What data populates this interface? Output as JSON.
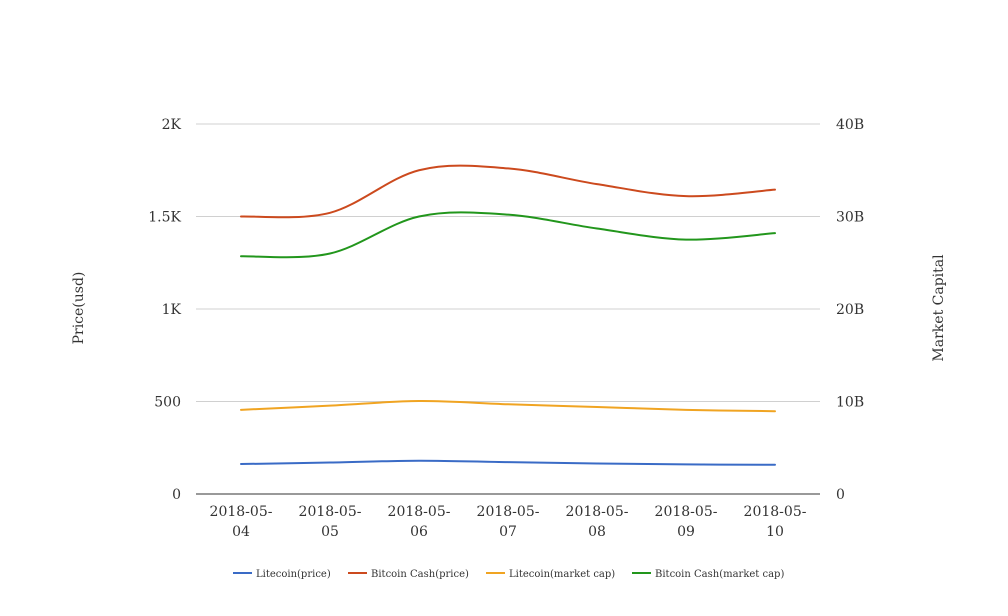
{
  "chart_data": {
    "type": "line",
    "categories": [
      "2018-05-04",
      "2018-05-05",
      "2018-05-06",
      "2018-05-07",
      "2018-05-08",
      "2018-05-09",
      "2018-05-10"
    ],
    "category_lines": [
      [
        "2018-05-",
        "04"
      ],
      [
        "2018-05-",
        "05"
      ],
      [
        "2018-05-",
        "06"
      ],
      [
        "2018-05-",
        "07"
      ],
      [
        "2018-05-",
        "08"
      ],
      [
        "2018-05-",
        "09"
      ],
      [
        "2018-05-",
        "10"
      ]
    ],
    "y_left": {
      "label": "Price(usd)",
      "range": [
        0,
        2000
      ],
      "ticks": [
        0,
        500,
        1000,
        1500,
        2000
      ],
      "tick_labels": [
        "0",
        "500",
        "1K",
        "1.5K",
        "2K"
      ]
    },
    "y_right": {
      "label": "Market Capital",
      "range": [
        0,
        40000000000
      ],
      "ticks": [
        0,
        10000000000,
        20000000000,
        30000000000,
        40000000000
      ],
      "tick_labels": [
        "0",
        "10B",
        "20B",
        "30B",
        "40B"
      ]
    },
    "grid": true,
    "legend_position": "bottom",
    "series": [
      {
        "name": "Litecoin(price)",
        "axis": "left",
        "color": "#3a6bc6",
        "values": [
          162,
          170,
          180,
          172,
          165,
          160,
          158
        ]
      },
      {
        "name": "Bitcoin Cash(price)",
        "axis": "left",
        "color": "#cc4a1e",
        "values": [
          1500,
          1520,
          1750,
          1760,
          1675,
          1610,
          1645
        ]
      },
      {
        "name": "Litecoin(market cap)",
        "axis": "right",
        "color": "#f0a422",
        "values": [
          9100000000,
          9550000000,
          10050000000,
          9700000000,
          9400000000,
          9100000000,
          8950000000
        ]
      },
      {
        "name": "Bitcoin Cash(market cap)",
        "axis": "right",
        "color": "#22961c",
        "values": [
          25700000000,
          26000000000,
          30000000000,
          30200000000,
          28700000000,
          27500000000,
          28200000000
        ]
      }
    ]
  }
}
